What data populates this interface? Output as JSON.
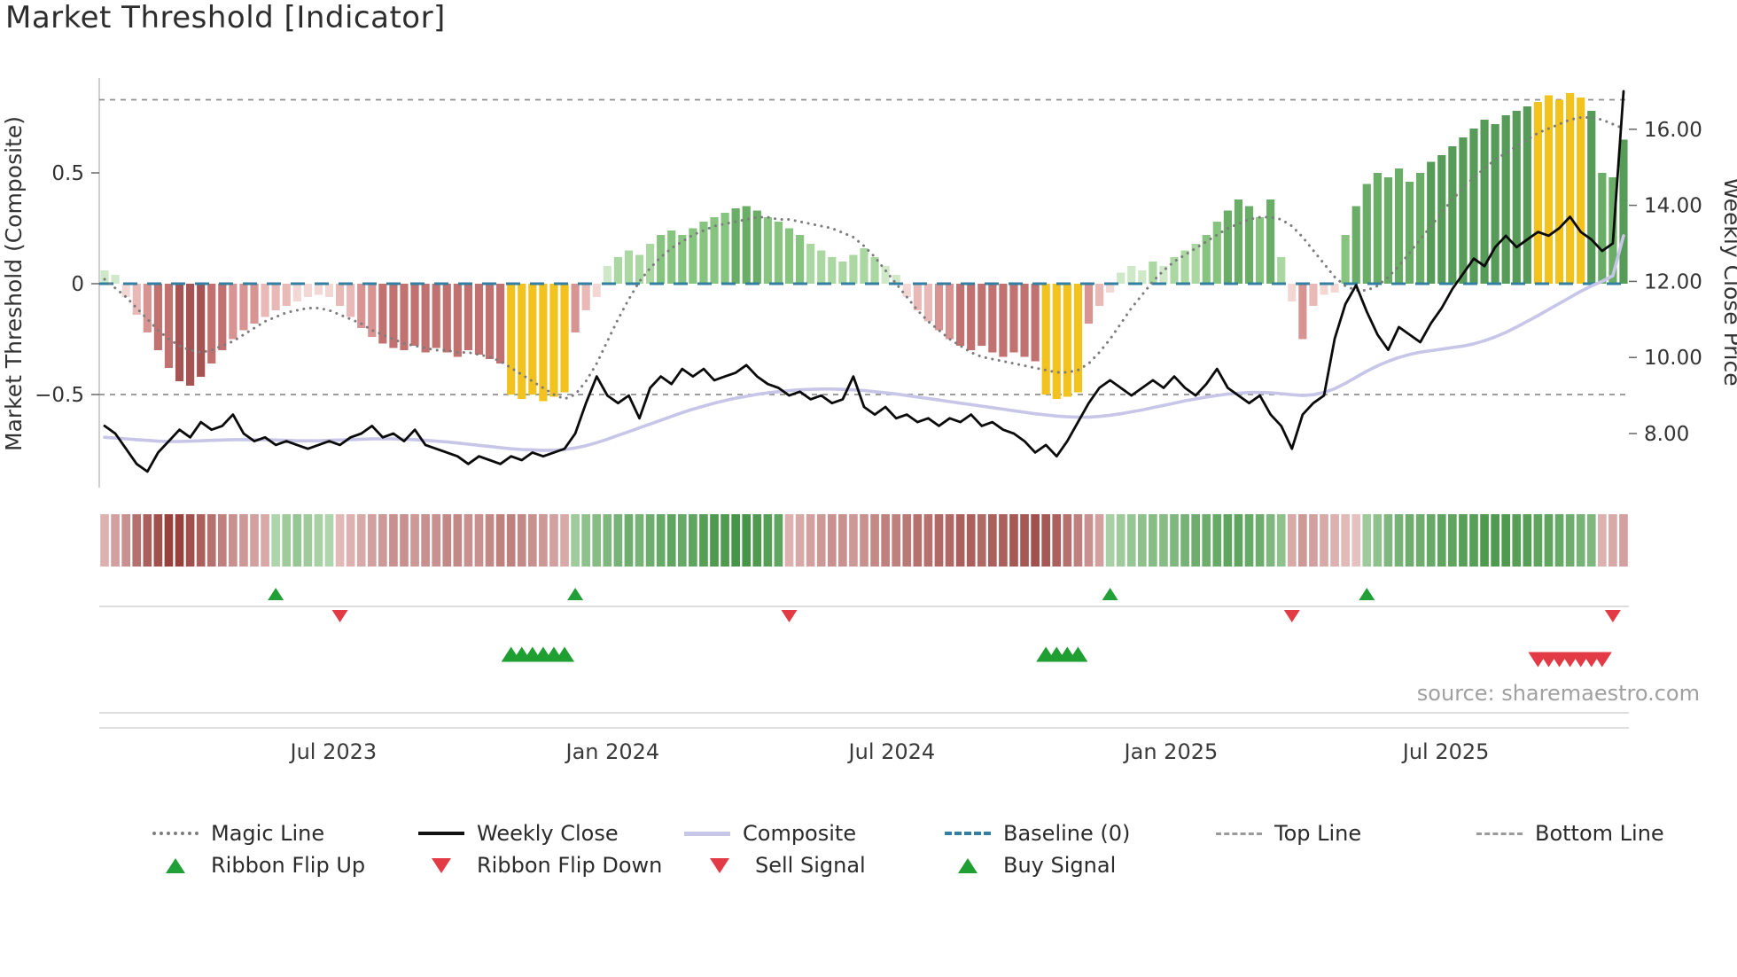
{
  "title": "Market Threshold [Indicator]",
  "source": "source: sharemaestro.com",
  "axes": {
    "left": {
      "label": "Market Threshold (Composite)"
    },
    "right": {
      "label": "Weekly Close Price"
    }
  },
  "legend": {
    "items": [
      {
        "label": "Magic Line"
      },
      {
        "label": "Weekly Close"
      },
      {
        "label": "Composite"
      },
      {
        "label": "Baseline (0)"
      },
      {
        "label": "Top Line"
      },
      {
        "label": "Bottom Line"
      },
      {
        "label": "Ribbon Flip Up"
      },
      {
        "label": "Ribbon Flip Down"
      },
      {
        "label": "Sell Signal"
      },
      {
        "label": "Buy Signal"
      }
    ]
  },
  "colors": {
    "weekly_close": "#0b0b0b",
    "composite_line": "#c7c5e8",
    "magic_line": "#7c7c7c",
    "baseline": "#337fa2",
    "top_bottom_line": "#8f8f8f",
    "buy_signal": "#1f9e32",
    "sell_signal": "#e33b45",
    "gold_bars": "#f2c21e"
  },
  "chart_data": {
    "type": "bar",
    "subtype": "indicator combo: composite histogram + magic/composite/price lines + color ribbon + trade signals",
    "x_unit": "weeks",
    "n_weeks": 143,
    "x_ticks": [
      {
        "week": 21.4,
        "label": "Jul 2023"
      },
      {
        "week": 47.5,
        "label": "Jan 2024"
      },
      {
        "week": 73.6,
        "label": "Jul 2024"
      },
      {
        "week": 99.7,
        "label": "Jan 2025"
      },
      {
        "week": 125.4,
        "label": "Jul 2025"
      }
    ],
    "left_axis": {
      "label": "Market Threshold (Composite)",
      "ticks": [
        {
          "value": 0.5,
          "label": "0.5"
        },
        {
          "value": 0.0,
          "label": "0"
        },
        {
          "value": -0.5,
          "label": "−0.5"
        }
      ],
      "baseline": 0.0,
      "top_line": 0.83,
      "bottom_line": -0.5
    },
    "right_axis": {
      "label": "Weekly Close Price",
      "ticks": [
        {
          "value": 16,
          "label": "16.00"
        },
        {
          "value": 14,
          "label": "14.00"
        },
        {
          "value": 12,
          "label": "12.00"
        },
        {
          "value": 10,
          "label": "10.00"
        },
        {
          "value": 8,
          "label": "8.00"
        }
      ]
    },
    "series": [
      {
        "name": "Composite histogram",
        "axis": "left",
        "style": "bar",
        "values": [
          0.06,
          0.04,
          -0.06,
          -0.14,
          -0.22,
          -0.3,
          -0.38,
          -0.44,
          -0.46,
          -0.42,
          -0.36,
          -0.3,
          -0.25,
          -0.21,
          -0.18,
          -0.15,
          -0.12,
          -0.1,
          -0.08,
          -0.06,
          -0.05,
          -0.06,
          -0.1,
          -0.15,
          -0.2,
          -0.24,
          -0.27,
          -0.29,
          -0.3,
          -0.28,
          -0.31,
          -0.29,
          -0.31,
          -0.33,
          -0.3,
          -0.32,
          -0.34,
          -0.36,
          -0.5,
          -0.52,
          -0.5,
          -0.53,
          -0.51,
          -0.49,
          -0.22,
          -0.12,
          -0.06,
          0.08,
          0.12,
          0.15,
          0.13,
          0.18,
          0.22,
          0.24,
          0.22,
          0.25,
          0.28,
          0.3,
          0.32,
          0.34,
          0.35,
          0.33,
          0.3,
          0.28,
          0.25,
          0.22,
          0.18,
          0.15,
          0.12,
          0.1,
          0.13,
          0.16,
          0.12,
          0.08,
          0.04,
          -0.06,
          -0.12,
          -0.17,
          -0.21,
          -0.25,
          -0.28,
          -0.3,
          -0.28,
          -0.31,
          -0.33,
          -0.31,
          -0.33,
          -0.35,
          -0.5,
          -0.52,
          -0.51,
          -0.49,
          -0.18,
          -0.1,
          -0.04,
          0.05,
          0.08,
          0.06,
          0.1,
          0.08,
          0.12,
          0.15,
          0.18,
          0.22,
          0.28,
          0.33,
          0.38,
          0.35,
          0.3,
          0.38,
          0.12,
          -0.08,
          -0.25,
          -0.1,
          -0.05,
          -0.04,
          0.22,
          0.35,
          0.45,
          0.5,
          0.48,
          0.52,
          0.46,
          0.5,
          0.55,
          0.58,
          0.62,
          0.66,
          0.7,
          0.74,
          0.72,
          0.76,
          0.78,
          0.8,
          0.82,
          0.85,
          0.83,
          0.86,
          0.84,
          0.78,
          0.5,
          0.48,
          0.65
        ]
      },
      {
        "name": "Magic Line",
        "axis": "left",
        "style": "dotted-line",
        "values": [
          0.02,
          -0.02,
          -0.06,
          -0.11,
          -0.16,
          -0.21,
          -0.25,
          -0.28,
          -0.3,
          -0.31,
          -0.3,
          -0.28,
          -0.26,
          -0.23,
          -0.2,
          -0.17,
          -0.15,
          -0.13,
          -0.12,
          -0.11,
          -0.11,
          -0.12,
          -0.14,
          -0.16,
          -0.18,
          -0.21,
          -0.23,
          -0.25,
          -0.27,
          -0.28,
          -0.29,
          -0.3,
          -0.3,
          -0.31,
          -0.31,
          -0.32,
          -0.33,
          -0.35,
          -0.38,
          -0.41,
          -0.44,
          -0.47,
          -0.5,
          -0.52,
          -0.5,
          -0.44,
          -0.36,
          -0.26,
          -0.16,
          -0.07,
          0.01,
          0.07,
          0.12,
          0.16,
          0.19,
          0.22,
          0.24,
          0.26,
          0.27,
          0.28,
          0.29,
          0.3,
          0.3,
          0.29,
          0.29,
          0.28,
          0.27,
          0.26,
          0.25,
          0.23,
          0.21,
          0.17,
          0.12,
          0.06,
          0.0,
          -0.06,
          -0.12,
          -0.17,
          -0.21,
          -0.25,
          -0.28,
          -0.31,
          -0.33,
          -0.34,
          -0.35,
          -0.36,
          -0.37,
          -0.38,
          -0.39,
          -0.4,
          -0.4,
          -0.39,
          -0.36,
          -0.31,
          -0.25,
          -0.18,
          -0.11,
          -0.05,
          0.01,
          0.06,
          0.1,
          0.13,
          0.16,
          0.19,
          0.22,
          0.25,
          0.27,
          0.29,
          0.3,
          0.3,
          0.29,
          0.26,
          0.21,
          0.15,
          0.09,
          0.03,
          -0.01,
          -0.03,
          -0.03,
          -0.01,
          0.03,
          0.08,
          0.14,
          0.2,
          0.26,
          0.32,
          0.38,
          0.43,
          0.48,
          0.52,
          0.56,
          0.59,
          0.62,
          0.65,
          0.68,
          0.7,
          0.72,
          0.74,
          0.75,
          0.75,
          0.74,
          0.72,
          0.7
        ]
      },
      {
        "name": "Weekly Close",
        "axis": "right",
        "style": "line",
        "values": [
          8.2,
          8.0,
          7.6,
          7.2,
          7.0,
          7.5,
          7.8,
          8.1,
          7.9,
          8.3,
          8.1,
          8.2,
          8.5,
          8.0,
          7.8,
          7.9,
          7.7,
          7.8,
          7.7,
          7.6,
          7.7,
          7.8,
          7.7,
          7.9,
          8.0,
          8.2,
          7.9,
          8.0,
          7.8,
          8.1,
          7.7,
          7.6,
          7.5,
          7.4,
          7.2,
          7.4,
          7.3,
          7.2,
          7.4,
          7.3,
          7.5,
          7.4,
          7.5,
          7.6,
          8.0,
          8.8,
          9.5,
          9.0,
          8.8,
          9.0,
          8.4,
          9.2,
          9.5,
          9.3,
          9.7,
          9.5,
          9.7,
          9.4,
          9.5,
          9.6,
          9.8,
          9.5,
          9.3,
          9.2,
          9.0,
          9.1,
          8.9,
          9.0,
          8.8,
          8.9,
          9.5,
          8.7,
          8.5,
          8.7,
          8.4,
          8.5,
          8.3,
          8.4,
          8.2,
          8.4,
          8.3,
          8.5,
          8.2,
          8.3,
          8.1,
          8.0,
          7.8,
          7.5,
          7.7,
          7.4,
          7.8,
          8.3,
          8.8,
          9.2,
          9.4,
          9.2,
          9.0,
          9.2,
          9.4,
          9.2,
          9.5,
          9.2,
          9.0,
          9.3,
          9.7,
          9.2,
          9.0,
          8.8,
          9.0,
          8.5,
          8.2,
          7.6,
          8.5,
          8.8,
          9.0,
          10.5,
          11.4,
          11.9,
          11.2,
          10.6,
          10.2,
          10.8,
          10.6,
          10.4,
          10.9,
          11.3,
          11.8,
          12.2,
          12.6,
          12.4,
          12.9,
          13.2,
          12.9,
          13.1,
          13.3,
          13.2,
          13.4,
          13.7,
          13.3,
          13.1,
          12.8,
          13.0,
          17.0
        ]
      },
      {
        "name": "Composite",
        "axis": "right",
        "style": "line",
        "values": [
          7.9,
          7.88,
          7.86,
          7.84,
          7.82,
          7.8,
          7.79,
          7.79,
          7.8,
          7.81,
          7.82,
          7.83,
          7.84,
          7.84,
          7.84,
          7.84,
          7.83,
          7.82,
          7.81,
          7.81,
          7.81,
          7.82,
          7.83,
          7.84,
          7.85,
          7.86,
          7.86,
          7.86,
          7.85,
          7.84,
          7.82,
          7.8,
          7.78,
          7.75,
          7.72,
          7.69,
          7.66,
          7.63,
          7.6,
          7.58,
          7.57,
          7.56,
          7.56,
          7.58,
          7.62,
          7.68,
          7.76,
          7.85,
          7.95,
          8.05,
          8.15,
          8.25,
          8.35,
          8.45,
          8.55,
          8.64,
          8.72,
          8.8,
          8.87,
          8.93,
          8.98,
          9.03,
          9.07,
          9.1,
          9.13,
          9.15,
          9.16,
          9.17,
          9.17,
          9.16,
          9.15,
          9.13,
          9.1,
          9.07,
          9.04,
          9.0,
          8.96,
          8.92,
          8.88,
          8.84,
          8.8,
          8.76,
          8.72,
          8.68,
          8.64,
          8.6,
          8.56,
          8.52,
          8.49,
          8.46,
          8.44,
          8.43,
          8.43,
          8.45,
          8.48,
          8.52,
          8.57,
          8.62,
          8.68,
          8.74,
          8.8,
          8.86,
          8.91,
          8.96,
          9.0,
          9.04,
          9.06,
          9.08,
          9.08,
          9.07,
          9.05,
          9.02,
          9.0,
          9.02,
          9.08,
          9.18,
          9.32,
          9.48,
          9.64,
          9.78,
          9.9,
          10.0,
          10.08,
          10.14,
          10.18,
          10.22,
          10.26,
          10.3,
          10.36,
          10.44,
          10.54,
          10.66,
          10.8,
          10.95,
          11.1,
          11.26,
          11.42,
          11.58,
          11.74,
          11.88,
          12.0,
          12.15,
          13.2
        ]
      }
    ],
    "ribbon": [
      -0.3,
      -0.4,
      -0.5,
      -0.7,
      -0.8,
      -0.9,
      -1.0,
      -1.0,
      -0.9,
      -0.8,
      -0.7,
      -0.6,
      -0.5,
      -0.45,
      -0.4,
      -0.35,
      0.3,
      0.4,
      0.45,
      0.4,
      0.35,
      0.3,
      -0.25,
      -0.3,
      -0.35,
      -0.4,
      -0.45,
      -0.5,
      -0.5,
      -0.45,
      -0.5,
      -0.5,
      -0.55,
      -0.55,
      -0.5,
      -0.5,
      -0.55,
      -0.6,
      -0.6,
      -0.55,
      -0.5,
      -0.45,
      -0.4,
      -0.35,
      0.4,
      0.5,
      0.55,
      0.6,
      0.65,
      0.7,
      0.65,
      0.7,
      0.75,
      0.8,
      0.75,
      0.8,
      0.85,
      0.9,
      0.9,
      0.95,
      0.95,
      0.9,
      0.85,
      0.8,
      -0.3,
      -0.35,
      -0.4,
      -0.45,
      -0.5,
      -0.5,
      -0.45,
      -0.5,
      -0.55,
      -0.6,
      -0.6,
      -0.65,
      -0.7,
      -0.7,
      -0.75,
      -0.75,
      -0.8,
      -0.8,
      -0.75,
      -0.8,
      -0.8,
      -0.85,
      -0.85,
      -0.9,
      -0.85,
      -0.8,
      -0.7,
      -0.6,
      -0.5,
      -0.4,
      0.35,
      0.4,
      0.45,
      0.5,
      0.55,
      0.55,
      0.6,
      0.65,
      0.7,
      0.7,
      0.75,
      0.8,
      0.8,
      0.75,
      0.7,
      0.6,
      0.5,
      -0.35,
      -0.45,
      -0.4,
      -0.35,
      -0.3,
      -0.25,
      -0.2,
      0.4,
      0.5,
      0.6,
      0.65,
      0.7,
      0.7,
      0.75,
      0.8,
      0.8,
      0.85,
      0.85,
      0.9,
      0.9,
      0.9,
      0.85,
      0.85,
      0.8,
      0.8,
      0.75,
      0.7,
      0.65,
      0.6,
      -0.3,
      -0.35,
      -0.4
    ],
    "gold_bar_weeks": [
      38,
      39,
      40,
      41,
      42,
      43,
      88,
      89,
      90,
      91,
      134,
      135,
      136,
      137,
      138
    ],
    "signals": {
      "ribbon_flip_up": [
        16,
        44,
        94,
        118
      ],
      "ribbon_flip_down": [
        22,
        64,
        111,
        141
      ],
      "buy_signal": [
        38,
        39,
        40,
        41,
        42,
        43,
        88,
        89,
        90,
        91
      ],
      "sell_signal": [
        134,
        135,
        136,
        137,
        138,
        139,
        140
      ]
    }
  }
}
